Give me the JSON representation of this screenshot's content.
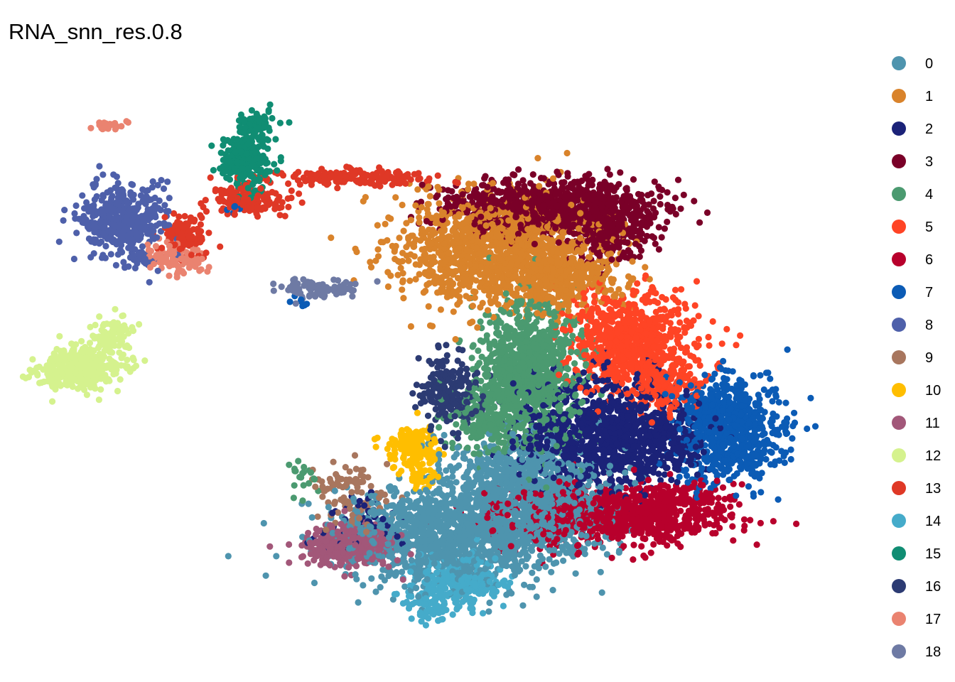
{
  "chart_data": {
    "type": "scatter",
    "title": "RNA_snn_res.0.8",
    "xlabel": "",
    "ylabel": "",
    "grid": false,
    "axes_visible": false,
    "legend_position": "right",
    "xlim": [
      0,
      100
    ],
    "ylim": [
      0,
      100
    ],
    "clusters": [
      {
        "name": "0",
        "color": "#4E94AE",
        "regions": [
          {
            "x": 52,
            "y": 21,
            "sx": 6.5,
            "sy": 4.2,
            "n": 1300
          },
          {
            "x": 60,
            "y": 30,
            "sx": 4.5,
            "sy": 3.5,
            "n": 600
          },
          {
            "x": 64,
            "y": 24,
            "sx": 3,
            "sy": 3,
            "n": 300
          }
        ]
      },
      {
        "name": "1",
        "color": "#D9832B",
        "regions": [
          {
            "x": 56.5,
            "y": 68,
            "sx": 6,
            "sy": 4.3,
            "n": 1200
          },
          {
            "x": 64,
            "y": 63.5,
            "sx": 3.5,
            "sy": 2.5,
            "n": 350
          }
        ]
      },
      {
        "name": "2",
        "color": "#1B2278",
        "regions": [
          {
            "x": 70,
            "y": 38,
            "sx": 4.5,
            "sy": 4.5,
            "n": 900
          },
          {
            "x": 77,
            "y": 36,
            "sx": 1.8,
            "sy": 2.5,
            "n": 150
          },
          {
            "x": 41,
            "y": 22,
            "sx": 3,
            "sy": 2.5,
            "n": 60
          },
          {
            "x": 62,
            "y": 35,
            "sx": 2.5,
            "sy": 3,
            "n": 80
          }
        ]
      },
      {
        "name": "3",
        "color": "#7A0028",
        "regions": [
          {
            "x": 63,
            "y": 75,
            "sx": 6,
            "sy": 2.2,
            "n": 900
          },
          {
            "x": 70,
            "y": 71,
            "sx": 2.5,
            "sy": 2.5,
            "n": 250
          }
        ]
      },
      {
        "name": "4",
        "color": "#4B9A70",
        "regions": [
          {
            "x": 60.5,
            "y": 48,
            "sx": 2.8,
            "sy": 5.5,
            "n": 900
          },
          {
            "x": 56,
            "y": 40,
            "sx": 2.5,
            "sy": 3,
            "n": 250
          },
          {
            "x": 34,
            "y": 31,
            "sx": 1.2,
            "sy": 1.5,
            "n": 20
          }
        ]
      },
      {
        "name": "5",
        "color": "#FF4425",
        "regions": [
          {
            "x": 72,
            "y": 53,
            "sx": 3.5,
            "sy": 4,
            "n": 700
          },
          {
            "x": 76,
            "y": 46,
            "sx": 2.5,
            "sy": 2.5,
            "n": 200
          }
        ]
      },
      {
        "name": "6",
        "color": "#B8002C",
        "regions": [
          {
            "x": 70,
            "y": 24,
            "sx": 6.5,
            "sy": 2.2,
            "n": 950
          },
          {
            "x": 78,
            "y": 27,
            "sx": 2.5,
            "sy": 1.5,
            "n": 120
          }
        ]
      },
      {
        "name": "7",
        "color": "#0B5BB5",
        "regions": [
          {
            "x": 84,
            "y": 38,
            "sx": 3,
            "sy": 4.2,
            "n": 650
          },
          {
            "x": 81,
            "y": 42,
            "sx": 1.5,
            "sy": 2,
            "n": 100
          },
          {
            "x": 34,
            "y": 59.5,
            "sx": 0.8,
            "sy": 0.6,
            "n": 8
          },
          {
            "x": 26,
            "y": 75,
            "sx": 1.2,
            "sy": 0.6,
            "n": 8
          }
        ]
      },
      {
        "name": "8",
        "color": "#4E60AA",
        "regions": [
          {
            "x": 12.5,
            "y": 73,
            "sx": 2.5,
            "sy": 2.8,
            "n": 420
          },
          {
            "x": 15,
            "y": 66,
            "sx": 1,
            "sy": 1,
            "n": 25
          }
        ]
      },
      {
        "name": "9",
        "color": "#A8765E",
        "regions": [
          {
            "x": 39.5,
            "y": 27,
            "sx": 2.3,
            "sy": 3,
            "n": 100
          }
        ]
      },
      {
        "name": "10",
        "color": "#FFBE00",
        "regions": [
          {
            "x": 46.5,
            "y": 35,
            "sx": 1.5,
            "sy": 1.6,
            "n": 160
          },
          {
            "x": 48,
            "y": 30.5,
            "sx": 1,
            "sy": 0.8,
            "n": 30
          }
        ]
      },
      {
        "name": "11",
        "color": "#A25779",
        "regions": [
          {
            "x": 39.5,
            "y": 19,
            "sx": 2.6,
            "sy": 1.6,
            "n": 460
          }
        ]
      },
      {
        "name": "12",
        "color": "#D5F28E",
        "regions": [
          {
            "x": 7.7,
            "y": 48.5,
            "sx": 2.3,
            "sy": 1.8,
            "n": 420
          },
          {
            "x": 11.5,
            "y": 54,
            "sx": 1.2,
            "sy": 1.5,
            "n": 80
          }
        ]
      },
      {
        "name": "13",
        "color": "#DF3826",
        "regions": [
          {
            "x": 40,
            "y": 80,
            "sx": 5,
            "sy": 0.6,
            "n": 170
          },
          {
            "x": 27,
            "y": 76.5,
            "sx": 2.5,
            "sy": 1.3,
            "n": 140
          },
          {
            "x": 20,
            "y": 70.5,
            "sx": 1.5,
            "sy": 1.6,
            "n": 110
          }
        ]
      },
      {
        "name": "14",
        "color": "#45ABCA",
        "regions": [
          {
            "x": 52,
            "y": 13,
            "sx": 2.5,
            "sy": 2.2,
            "n": 260
          },
          {
            "x": 48.5,
            "y": 9,
            "sx": 1.2,
            "sy": 1.5,
            "n": 50
          }
        ]
      },
      {
        "name": "15",
        "color": "#108D73",
        "regions": [
          {
            "x": 27.2,
            "y": 83,
            "sx": 1.4,
            "sy": 2.5,
            "n": 230
          },
          {
            "x": 28.5,
            "y": 89,
            "sx": 1.5,
            "sy": 0.8,
            "n": 60
          }
        ]
      },
      {
        "name": "16",
        "color": "#2C3B73",
        "regions": [
          {
            "x": 51.5,
            "y": 44.5,
            "sx": 1.8,
            "sy": 3.5,
            "n": 200
          }
        ]
      },
      {
        "name": "17",
        "color": "#EA8370",
        "regions": [
          {
            "x": 19,
            "y": 66.5,
            "sx": 1.8,
            "sy": 1.2,
            "n": 100
          },
          {
            "x": 11,
            "y": 88.5,
            "sx": 1,
            "sy": 0.4,
            "n": 25
          }
        ]
      },
      {
        "name": "18",
        "color": "#6E7AA4",
        "regions": [
          {
            "x": 35.5,
            "y": 61.5,
            "sx": 2.2,
            "sy": 0.7,
            "n": 90
          }
        ]
      }
    ]
  }
}
